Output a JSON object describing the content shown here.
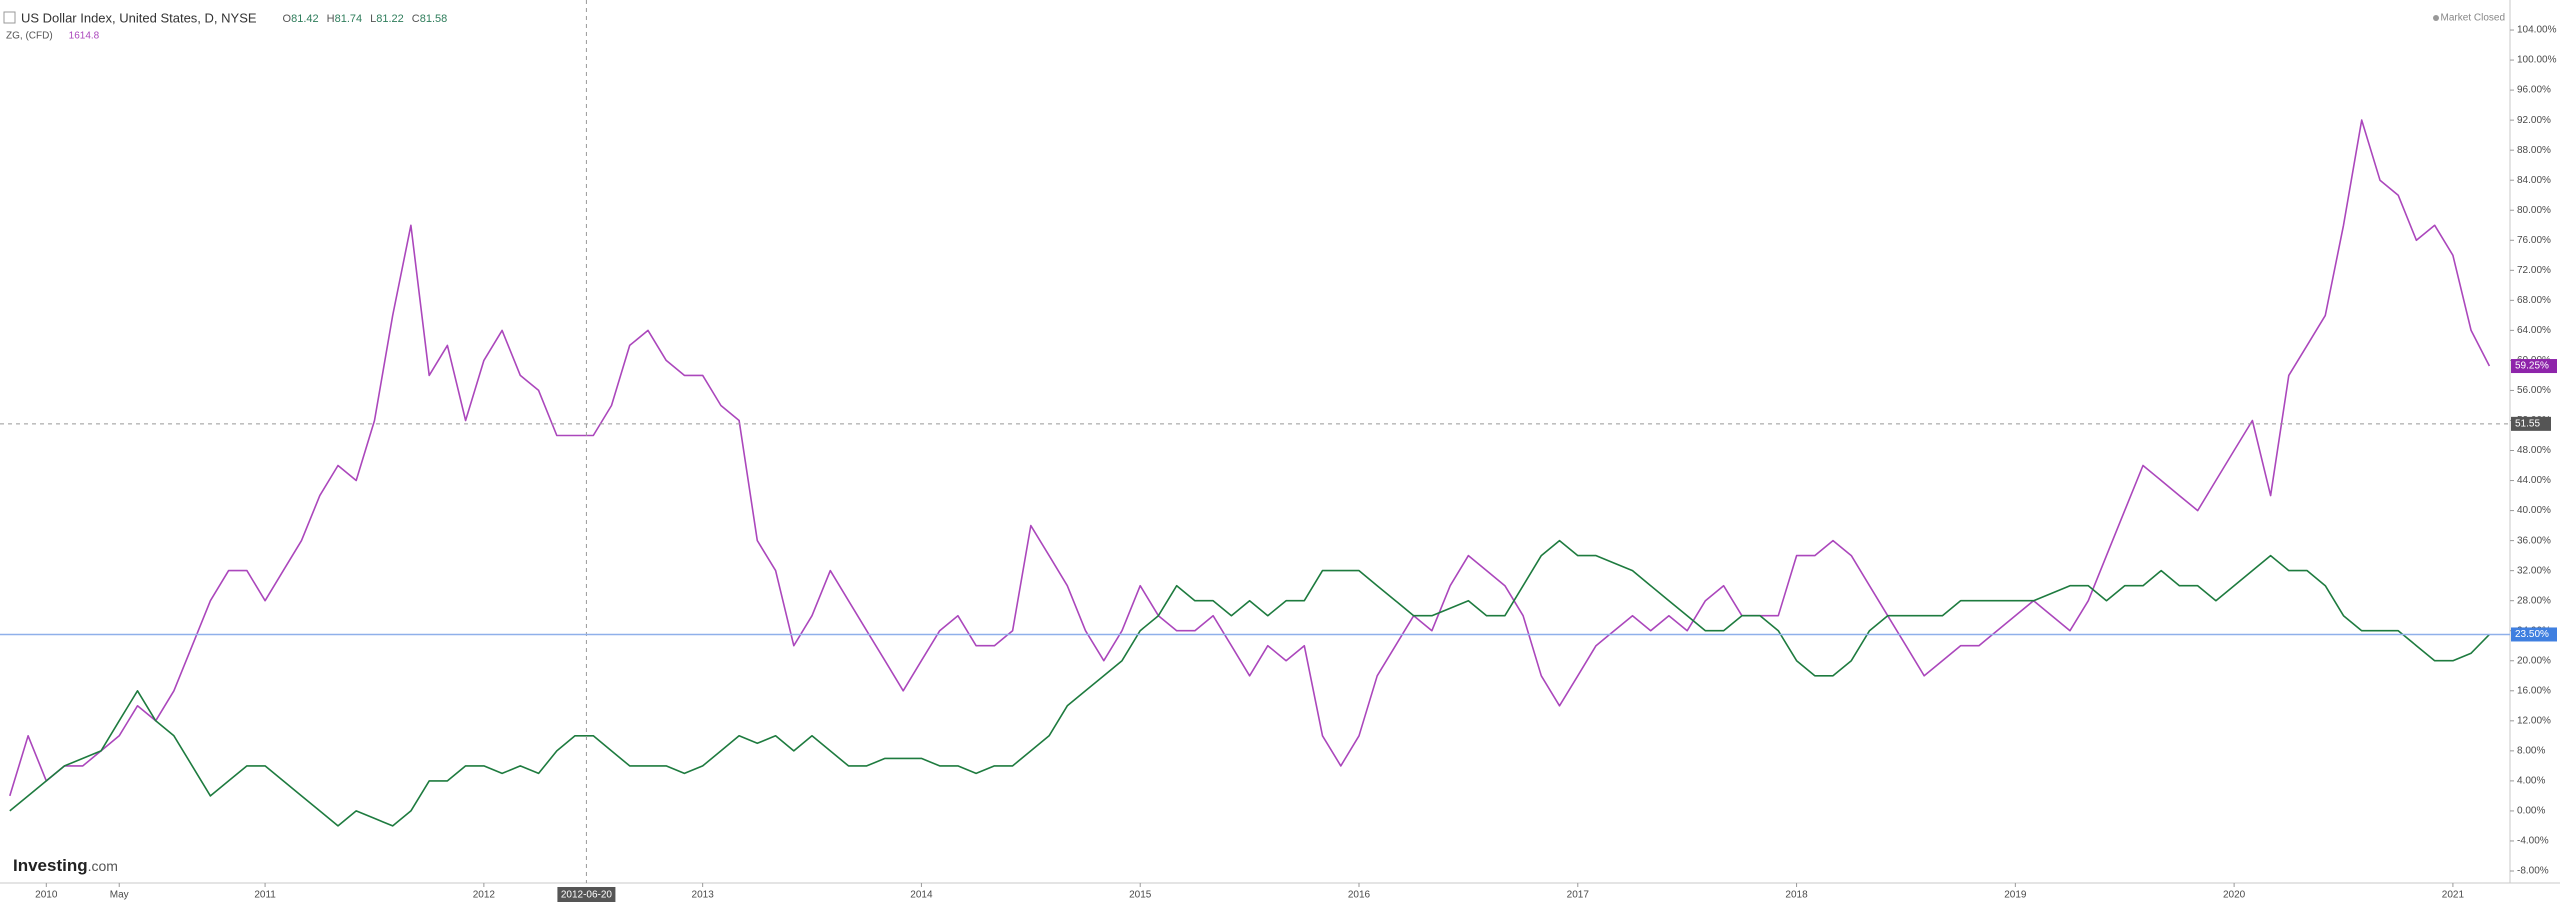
{
  "header": {
    "title": "US Dollar Index, United States, D, NYSE",
    "ohlc": [
      {
        "key": "O",
        "value": 81.42
      },
      {
        "key": "H",
        "value": 81.74
      },
      {
        "key": "L",
        "value": 81.22
      },
      {
        "key": "C",
        "value": 81.58
      }
    ],
    "compare": "ZG, (CFD)",
    "compare_value": 1614.8,
    "status": "Market Closed",
    "logo": {
      "name": "Investing",
      "suffix": ".com"
    }
  },
  "chart_data": {
    "type": "line",
    "x": [
      "2009-11",
      "2009-12",
      "2010-01",
      "2010-02",
      "2010-03",
      "2010-04",
      "2010-05",
      "2010-06",
      "2010-07",
      "2010-08",
      "2010-09",
      "2010-10",
      "2010-11",
      "2010-12",
      "2011-01",
      "2011-02",
      "2011-03",
      "2011-04",
      "2011-05",
      "2011-06",
      "2011-07",
      "2011-08",
      "2011-09",
      "2011-10",
      "2011-11",
      "2011-12",
      "2012-01",
      "2012-02",
      "2012-03",
      "2012-04",
      "2012-05",
      "2012-06",
      "2012-07",
      "2012-08",
      "2012-09",
      "2012-10",
      "2012-11",
      "2012-12",
      "2013-01",
      "2013-02",
      "2013-03",
      "2013-04",
      "2013-05",
      "2013-06",
      "2013-07",
      "2013-08",
      "2013-09",
      "2013-10",
      "2013-11",
      "2013-12",
      "2014-01",
      "2014-02",
      "2014-03",
      "2014-04",
      "2014-05",
      "2014-06",
      "2014-07",
      "2014-08",
      "2014-09",
      "2014-10",
      "2014-11",
      "2014-12",
      "2015-01",
      "2015-02",
      "2015-03",
      "2015-04",
      "2015-05",
      "2015-06",
      "2015-07",
      "2015-08",
      "2015-09",
      "2015-10",
      "2015-11",
      "2015-12",
      "2016-01",
      "2016-02",
      "2016-03",
      "2016-04",
      "2016-05",
      "2016-06",
      "2016-07",
      "2016-08",
      "2016-09",
      "2016-10",
      "2016-11",
      "2016-12",
      "2017-01",
      "2017-02",
      "2017-03",
      "2017-04",
      "2017-05",
      "2017-06",
      "2017-07",
      "2017-08",
      "2017-09",
      "2017-10",
      "2017-11",
      "2017-12",
      "2018-01",
      "2018-02",
      "2018-03",
      "2018-04",
      "2018-05",
      "2018-06",
      "2018-07",
      "2018-08",
      "2018-09",
      "2018-10",
      "2018-11",
      "2018-12",
      "2019-01",
      "2019-02",
      "2019-03",
      "2019-04",
      "2019-05",
      "2019-06",
      "2019-07",
      "2019-08",
      "2019-09",
      "2019-10",
      "2019-11",
      "2019-12",
      "2020-01",
      "2020-02",
      "2020-03",
      "2020-04",
      "2020-05",
      "2020-06",
      "2020-07",
      "2020-08",
      "2020-09",
      "2020-10",
      "2020-11",
      "2020-12",
      "2021-01",
      "2021-02",
      "2021-03"
    ],
    "series": [
      {
        "name": "ZG, (CFD)",
        "color": "#ab47bc",
        "last_label": "59.25%",
        "values": [
          2,
          10,
          4,
          6,
          6,
          8,
          10,
          14,
          12,
          16,
          22,
          28,
          32,
          32,
          28,
          32,
          36,
          42,
          46,
          44,
          52,
          66,
          78,
          58,
          62,
          52,
          60,
          64,
          58,
          56,
          50,
          50,
          50,
          54,
          62,
          64,
          60,
          58,
          58,
          54,
          52,
          36,
          32,
          22,
          26,
          32,
          28,
          24,
          20,
          16,
          20,
          24,
          26,
          22,
          22,
          24,
          38,
          34,
          30,
          24,
          20,
          24,
          30,
          26,
          24,
          24,
          26,
          22,
          18,
          22,
          20,
          22,
          10,
          6,
          10,
          18,
          22,
          26,
          24,
          30,
          34,
          32,
          30,
          26,
          18,
          14,
          18,
          22,
          24,
          26,
          24,
          26,
          24,
          28,
          30,
          26,
          26,
          26,
          34,
          34,
          36,
          34,
          30,
          26,
          22,
          18,
          20,
          22,
          22,
          24,
          26,
          28,
          26,
          24,
          28,
          34,
          40,
          46,
          44,
          42,
          40,
          44,
          48,
          52,
          42,
          58,
          62,
          66,
          78,
          92,
          84,
          82,
          76,
          78,
          74,
          64,
          59.25
        ]
      },
      {
        "name": "US Dollar Index, United States, D, NYSE",
        "color": "#1e7b3f",
        "last_label": "23.50%",
        "values": [
          0,
          2,
          4,
          6,
          7,
          8,
          12,
          16,
          12,
          10,
          6,
          2,
          4,
          6,
          6,
          4,
          2,
          0,
          -2,
          0,
          -1,
          -2,
          0,
          4,
          4,
          6,
          6,
          5,
          6,
          5,
          8,
          10,
          10,
          8,
          6,
          6,
          6,
          5,
          6,
          8,
          10,
          9,
          10,
          8,
          10,
          8,
          6,
          6,
          7,
          7,
          7,
          6,
          6,
          5,
          6,
          6,
          8,
          10,
          14,
          16,
          18,
          20,
          24,
          26,
          30,
          28,
          28,
          26,
          28,
          26,
          28,
          28,
          32,
          32,
          32,
          30,
          28,
          26,
          26,
          27,
          28,
          26,
          26,
          30,
          34,
          36,
          34,
          34,
          33,
          32,
          30,
          28,
          26,
          24,
          24,
          26,
          26,
          24,
          20,
          18,
          18,
          20,
          24,
          26,
          26,
          26,
          26,
          28,
          28,
          28,
          28,
          28,
          29,
          30,
          30,
          28,
          30,
          30,
          32,
          30,
          30,
          28,
          30,
          32,
          34,
          32,
          32,
          30,
          26,
          24,
          24,
          24,
          22,
          20,
          20,
          21,
          23.5
        ]
      }
    ],
    "xlim": [
      "2009-10-15",
      "2021-04-05"
    ],
    "xticks": [
      {
        "value": "2010-01",
        "label": "2010"
      },
      {
        "value": "2010-05",
        "label": "May"
      },
      {
        "value": "2011-01",
        "label": "2011"
      },
      {
        "value": "2012-01",
        "label": "2012"
      },
      {
        "value": "2013-01",
        "label": "2013"
      },
      {
        "value": "2014-01",
        "label": "2014"
      },
      {
        "value": "2015-01",
        "label": "2015"
      },
      {
        "value": "2016-01",
        "label": "2016"
      },
      {
        "value": "2017-01",
        "label": "2017"
      },
      {
        "value": "2018-01",
        "label": "2018"
      },
      {
        "value": "2019-01",
        "label": "2019"
      },
      {
        "value": "2020-01",
        "label": "2020"
      },
      {
        "value": "2021-01",
        "label": "2021"
      }
    ],
    "ylim": [
      -9.6,
      108
    ],
    "yticks": [
      {
        "value": -8,
        "label": "-8.00%"
      },
      {
        "value": -4,
        "label": "-4.00%"
      },
      {
        "value": 0,
        "label": "0.00%"
      },
      {
        "value": 4,
        "label": "4.00%"
      },
      {
        "value": 8,
        "label": "8.00%"
      },
      {
        "value": 12,
        "label": "12.00%"
      },
      {
        "value": 16,
        "label": "16.00%"
      },
      {
        "value": 20,
        "label": "20.00%"
      },
      {
        "value": 24,
        "label": "24.00%"
      },
      {
        "value": 28,
        "label": "28.00%"
      },
      {
        "value": 32,
        "label": "32.00%"
      },
      {
        "value": 36,
        "label": "36.00%"
      },
      {
        "value": 40,
        "label": "40.00%"
      },
      {
        "value": 44,
        "label": "44.00%"
      },
      {
        "value": 48,
        "label": "48.00%"
      },
      {
        "value": 52,
        "label": "52.00%"
      },
      {
        "value": 56,
        "label": "56.00%"
      },
      {
        "value": 60,
        "label": "60.00%"
      },
      {
        "value": 64,
        "label": "64.00%"
      },
      {
        "value": 68,
        "label": "68.00%"
      },
      {
        "value": 72,
        "label": "72.00%"
      },
      {
        "value": 76,
        "label": "76.00%"
      },
      {
        "value": 80,
        "label": "80.00%"
      },
      {
        "value": 84,
        "label": "84.00%"
      },
      {
        "value": 88,
        "label": "88.00%"
      },
      {
        "value": 92,
        "label": "92.00%"
      },
      {
        "value": 96,
        "label": "96.00%"
      },
      {
        "value": 100,
        "label": "100.00%"
      },
      {
        "value": 104,
        "label": "104.00%"
      }
    ],
    "crosshair": {
      "x": "2012-06-20",
      "y": 51.55
    },
    "grid": false
  }
}
